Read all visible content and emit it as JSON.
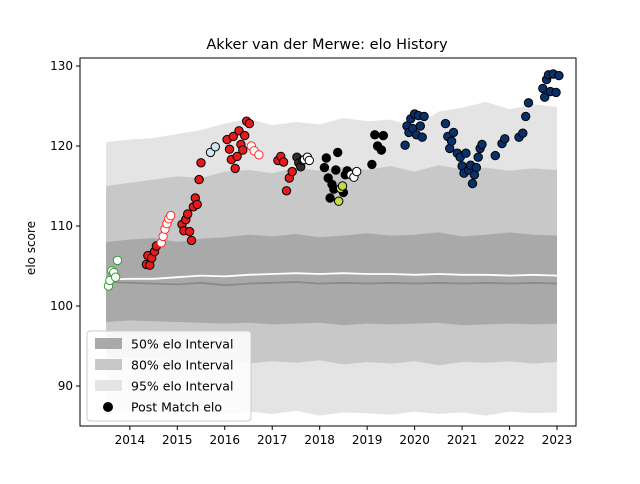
{
  "chart_data": {
    "type": "scatter",
    "title": "Akker van der Merwe: elo History",
    "xlabel": "",
    "ylabel": "elo score",
    "xlim": [
      2012.95,
      2023.4
    ],
    "ylim": [
      85,
      131
    ],
    "x_ticks": [
      2014,
      2015,
      2016,
      2017,
      2018,
      2019,
      2020,
      2021,
      2022,
      2023
    ],
    "y_ticks": [
      90,
      100,
      110,
      120,
      130
    ],
    "grid": false,
    "legend_position": "lower-left",
    "legend": [
      {
        "label": "50% elo Interval",
        "color": "#a9a9a9"
      },
      {
        "label": "80% elo Interval",
        "color": "#c8c8c8"
      },
      {
        "label": "95% elo Interval",
        "color": "#e4e4e4"
      },
      {
        "label": "Post Match elo",
        "color": "#000000"
      }
    ],
    "bands": {
      "x": [
        2013.5,
        2014.0,
        2014.5,
        2015.0,
        2015.5,
        2016.0,
        2016.5,
        2017.0,
        2017.5,
        2018.0,
        2018.5,
        2019.0,
        2019.5,
        2020.0,
        2020.5,
        2021.0,
        2021.5,
        2022.0,
        2022.5,
        2023.0
      ],
      "median": [
        103.0,
        102.9,
        102.8,
        102.7,
        102.9,
        102.6,
        102.8,
        102.9,
        103.0,
        102.8,
        102.9,
        102.8,
        102.9,
        102.8,
        102.9,
        102.8,
        102.9,
        102.8,
        102.9,
        102.8
      ],
      "line": [
        103.3,
        103.4,
        103.4,
        103.6,
        103.8,
        103.7,
        103.9,
        104.0,
        104.1,
        104.0,
        104.1,
        104.0,
        104.0,
        103.9,
        104.0,
        103.9,
        103.9,
        103.8,
        103.9,
        103.8
      ],
      "q50": {
        "low": [
          98.0,
          98.2,
          98.1,
          98.0,
          97.9,
          97.8,
          97.9,
          97.7,
          97.8,
          97.9,
          97.6,
          97.8,
          97.7,
          97.8,
          97.9,
          97.6,
          97.7,
          97.8,
          97.7,
          97.8
        ],
        "high": [
          108.0,
          108.3,
          108.5,
          108.0,
          108.4,
          108.6,
          108.9,
          108.7,
          109.0,
          108.6,
          108.8,
          109.1,
          108.8,
          108.9,
          109.2,
          108.7,
          108.9,
          109.2,
          108.9,
          108.8
        ]
      },
      "q80": {
        "low": [
          93.5,
          93.6,
          93.4,
          93.3,
          93.0,
          93.4,
          92.8,
          93.1,
          92.9,
          93.2,
          92.7,
          93.0,
          92.8,
          93.1,
          92.6,
          93.0,
          92.9,
          93.1,
          92.8,
          93.0
        ],
        "high": [
          115.0,
          115.4,
          115.8,
          116.2,
          116.0,
          116.8,
          117.0,
          116.6,
          117.3,
          116.9,
          117.4,
          117.0,
          117.5,
          116.8,
          117.6,
          117.1,
          117.3,
          116.9,
          117.2,
          117.0
        ]
      },
      "q95": {
        "low": [
          86.5,
          87.0,
          86.8,
          86.6,
          86.9,
          86.4,
          86.8,
          86.5,
          86.9,
          86.3,
          86.7,
          86.6,
          86.4,
          86.8,
          86.5,
          86.7,
          86.3,
          86.8,
          86.6,
          86.7
        ],
        "high": [
          120.5,
          120.8,
          121.0,
          121.5,
          122.0,
          122.8,
          123.4,
          122.6,
          123.0,
          122.7,
          123.5,
          123.1,
          123.3,
          122.4,
          124.3,
          124.8,
          125.5,
          124.6,
          125.2,
          124.9
        ]
      }
    },
    "series": [
      {
        "color": "#2ca02c",
        "filled": false,
        "points": [
          [
            2013.55,
            102.5
          ],
          [
            2013.58,
            103.2
          ],
          [
            2013.62,
            104.4
          ],
          [
            2013.66,
            104.2
          ],
          [
            2013.7,
            103.6
          ],
          [
            2013.74,
            105.7
          ]
        ]
      },
      {
        "color": "#e41a1c",
        "filled": true,
        "points": [
          [
            2014.35,
            105.2
          ],
          [
            2014.38,
            106.3
          ],
          [
            2014.42,
            105.1
          ],
          [
            2014.46,
            106.0
          ],
          [
            2014.52,
            106.8
          ],
          [
            2014.56,
            107.5
          ]
        ]
      },
      {
        "color": "#ff2a2a",
        "filled": false,
        "points": [
          [
            2014.66,
            107.9
          ],
          [
            2014.7,
            108.7
          ],
          [
            2014.74,
            109.6
          ],
          [
            2014.78,
            110.3
          ],
          [
            2014.82,
            110.9
          ],
          [
            2014.86,
            111.3
          ]
        ]
      },
      {
        "color": "#e41a1c",
        "filled": true,
        "points": [
          [
            2015.1,
            110.2
          ],
          [
            2015.14,
            109.4
          ],
          [
            2015.18,
            110.8
          ],
          [
            2015.22,
            111.5
          ],
          [
            2015.26,
            109.3
          ],
          [
            2015.3,
            108.2
          ],
          [
            2015.34,
            112.4
          ],
          [
            2015.38,
            113.5
          ],
          [
            2015.42,
            112.7
          ],
          [
            2015.46,
            115.8
          ],
          [
            2015.5,
            117.9
          ]
        ]
      },
      {
        "color": "#cfe8f3",
        "filled": true,
        "points": [
          [
            2015.7,
            119.2
          ],
          [
            2015.8,
            119.9
          ]
        ]
      },
      {
        "color": "#e41a1c",
        "filled": true,
        "points": [
          [
            2016.05,
            120.8
          ],
          [
            2016.1,
            119.6
          ],
          [
            2016.14,
            118.3
          ],
          [
            2016.18,
            121.2
          ],
          [
            2016.22,
            117.2
          ],
          [
            2016.26,
            118.7
          ],
          [
            2016.3,
            121.9
          ],
          [
            2016.34,
            120.2
          ],
          [
            2016.38,
            119.5
          ],
          [
            2016.42,
            121.3
          ],
          [
            2016.46,
            123.1
          ],
          [
            2016.52,
            122.8
          ]
        ]
      },
      {
        "color": "#ff2a2a",
        "filled": false,
        "points": [
          [
            2016.56,
            120.0
          ],
          [
            2016.62,
            119.4
          ],
          [
            2016.72,
            118.9
          ]
        ]
      },
      {
        "color": "#e41a1c",
        "filled": true,
        "points": [
          [
            2017.12,
            118.2
          ],
          [
            2017.18,
            118.7
          ],
          [
            2017.24,
            118.0
          ],
          [
            2017.3,
            114.4
          ],
          [
            2017.36,
            116.0
          ],
          [
            2017.42,
            116.8
          ]
        ]
      },
      {
        "color": "#2e2e2e",
        "filled": true,
        "points": [
          [
            2017.52,
            118.6
          ],
          [
            2017.56,
            117.9
          ],
          [
            2017.6,
            117.4
          ],
          [
            2017.64,
            118.2
          ]
        ]
      },
      {
        "color": "#ffffff",
        "filled": true,
        "points": [
          [
            2017.68,
            118.3
          ],
          [
            2017.74,
            118.6
          ],
          [
            2017.78,
            118.2
          ]
        ]
      },
      {
        "color": "#000000",
        "filled": true,
        "points": [
          [
            2018.1,
            117.3
          ],
          [
            2018.14,
            118.5
          ],
          [
            2018.18,
            116.0
          ],
          [
            2018.22,
            113.5
          ],
          [
            2018.26,
            115.2
          ],
          [
            2018.3,
            114.6
          ],
          [
            2018.34,
            117.0
          ],
          [
            2018.38,
            119.2
          ],
          [
            2018.5,
            114.2
          ],
          [
            2018.54,
            116.4
          ],
          [
            2018.58,
            116.9
          ]
        ]
      },
      {
        "color": "#c8d84a",
        "filled": true,
        "points": [
          [
            2018.4,
            113.1
          ],
          [
            2018.44,
            114.7
          ],
          [
            2018.48,
            115.0
          ]
        ]
      },
      {
        "color": "#ffffff",
        "filled": true,
        "points": [
          [
            2018.66,
            116.4
          ],
          [
            2018.72,
            116.1
          ],
          [
            2018.78,
            116.8
          ]
        ]
      },
      {
        "color": "#000000",
        "filled": true,
        "points": [
          [
            2019.1,
            117.7
          ],
          [
            2019.16,
            121.4
          ],
          [
            2019.22,
            120.0
          ],
          [
            2019.3,
            119.5
          ],
          [
            2019.34,
            121.3
          ]
        ]
      },
      {
        "color": "#08306b",
        "filled": true,
        "points": [
          [
            2019.8,
            120.1
          ],
          [
            2019.84,
            122.5
          ],
          [
            2019.88,
            121.7
          ],
          [
            2019.92,
            123.4
          ],
          [
            2019.96,
            122.2
          ],
          [
            2020.0,
            124.0
          ],
          [
            2020.04,
            121.4
          ],
          [
            2020.08,
            123.8
          ],
          [
            2020.12,
            122.5
          ],
          [
            2020.16,
            121.1
          ],
          [
            2020.2,
            123.7
          ],
          [
            2020.65,
            122.8
          ],
          [
            2020.7,
            121.2
          ],
          [
            2020.74,
            119.7
          ],
          [
            2020.78,
            120.6
          ],
          [
            2020.82,
            121.7
          ],
          [
            2020.9,
            119.1
          ],
          [
            2020.96,
            118.6
          ],
          [
            2021.0,
            117.5
          ],
          [
            2021.04,
            116.6
          ],
          [
            2021.08,
            119.1
          ],
          [
            2021.14,
            117.0
          ],
          [
            2021.18,
            117.6
          ],
          [
            2021.22,
            115.3
          ],
          [
            2021.26,
            116.4
          ],
          [
            2021.3,
            117.3
          ],
          [
            2021.34,
            118.6
          ],
          [
            2021.38,
            119.7
          ],
          [
            2021.42,
            120.2
          ],
          [
            2021.7,
            118.8
          ],
          [
            2021.84,
            120.3
          ],
          [
            2021.9,
            120.9
          ],
          [
            2022.2,
            121.1
          ],
          [
            2022.28,
            121.6
          ],
          [
            2022.34,
            123.7
          ],
          [
            2022.4,
            125.4
          ],
          [
            2022.7,
            127.2
          ],
          [
            2022.74,
            126.1
          ],
          [
            2022.78,
            128.3
          ],
          [
            2022.82,
            128.9
          ],
          [
            2022.86,
            126.8
          ],
          [
            2022.92,
            129.0
          ],
          [
            2022.98,
            126.7
          ],
          [
            2023.04,
            128.8
          ]
        ]
      }
    ]
  }
}
